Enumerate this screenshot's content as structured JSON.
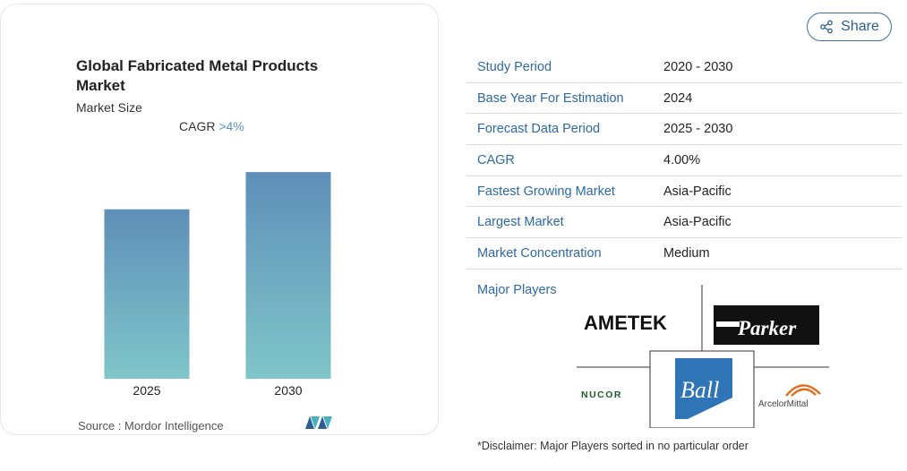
{
  "chart_card": {
    "subtitle": "Market Size",
    "cagr_label": "CAGR",
    "cagr_value": ">4%",
    "source_text": "Source :  Mordor Intelligence",
    "logo_icon": "mordor-intelligence-logo-icon"
  },
  "chart_data": {
    "type": "bar",
    "title": "Global Fabricated Metal Products Market",
    "categories": [
      "2025",
      "2030"
    ],
    "values": [
      1.0,
      1.22
    ],
    "ylim": [
      0,
      1.3
    ],
    "xlabel": "",
    "ylabel": "",
    "grid": false,
    "legend": "none",
    "bar_color_top": "#5f8fb8",
    "bar_color_bottom": "#7fc6c9"
  },
  "share": {
    "label": "Share",
    "icon": "share-icon",
    "color": "#2c5d92"
  },
  "info_table": [
    {
      "key": "Study Period",
      "value": "2020 - 2030"
    },
    {
      "key": "Base Year For Estimation",
      "value": "2024"
    },
    {
      "key": "Forecast Data Period",
      "value": "2025 - 2030"
    },
    {
      "key": "CAGR",
      "value": "4.00%"
    },
    {
      "key": "Fastest Growing Market",
      "value": "Asia-Pacific"
    },
    {
      "key": "Largest Market",
      "value": "Asia-Pacific"
    },
    {
      "key": "Market Concentration",
      "value": "Medium"
    }
  ],
  "major_players": {
    "label": "Major Players",
    "logos": [
      "AMETEK",
      "Parker",
      "NUCOR",
      "Ball",
      "ArcelorMittal"
    ]
  },
  "disclaimer": "*Disclaimer: Major Players sorted in no particular order"
}
